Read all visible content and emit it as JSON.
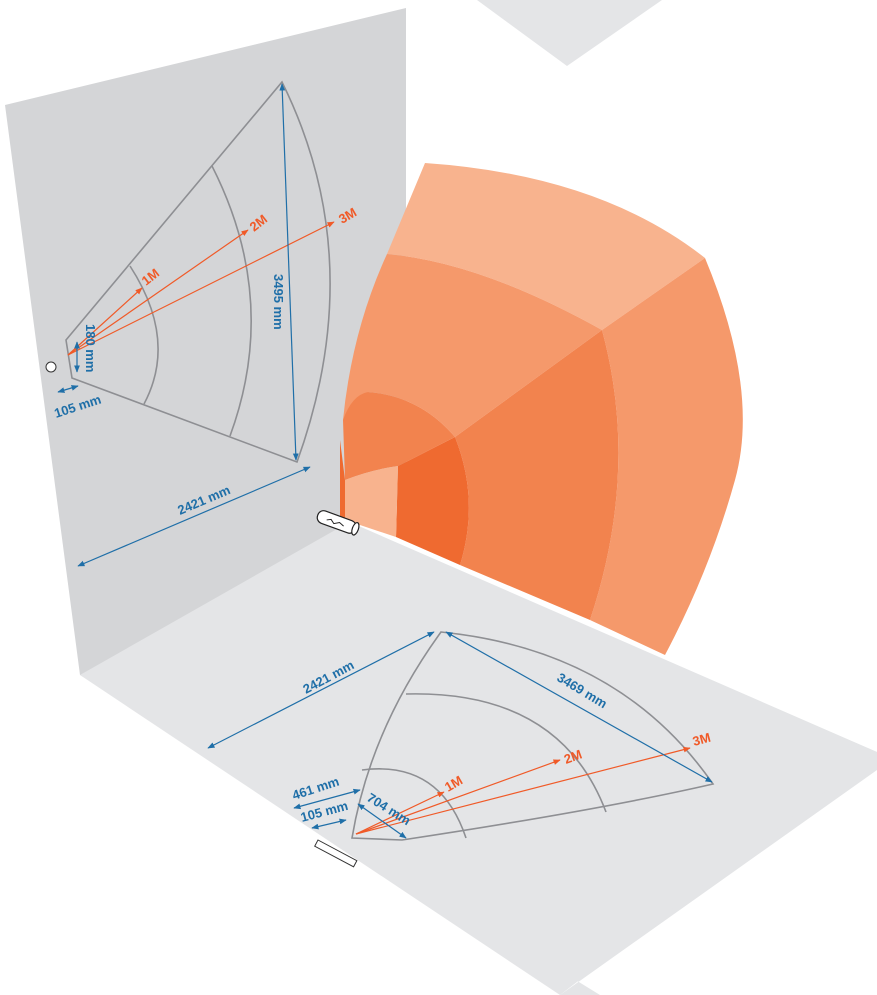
{
  "colors": {
    "wall": "#d4d5d7",
    "floor": "#e4e5e7",
    "ray": "#f05a28",
    "dimension": "#1f6fa8",
    "arc": "#8e8f93",
    "zone_outer": "#f8b38e",
    "zone_mid": "#f5996b",
    "zone_inner": "#f2834e",
    "zone_core": "#ef6a30"
  },
  "wall": {
    "distance_labels": [
      "1M",
      "2M",
      "3M"
    ],
    "dimensions": {
      "width": "3495 mm",
      "source_height": "180 mm",
      "source_width": "105 mm",
      "depth": "2421 mm"
    }
  },
  "floor": {
    "distance_labels": [
      "1M",
      "2M",
      "3M"
    ],
    "dimensions": {
      "depth": "2421 mm",
      "width": "3469 mm",
      "near_width": "461 mm",
      "source_width": "105 mm",
      "near_depth": "704 mm"
    }
  },
  "beam": {
    "sensor_icon": "cylinder-sensor-icon"
  }
}
